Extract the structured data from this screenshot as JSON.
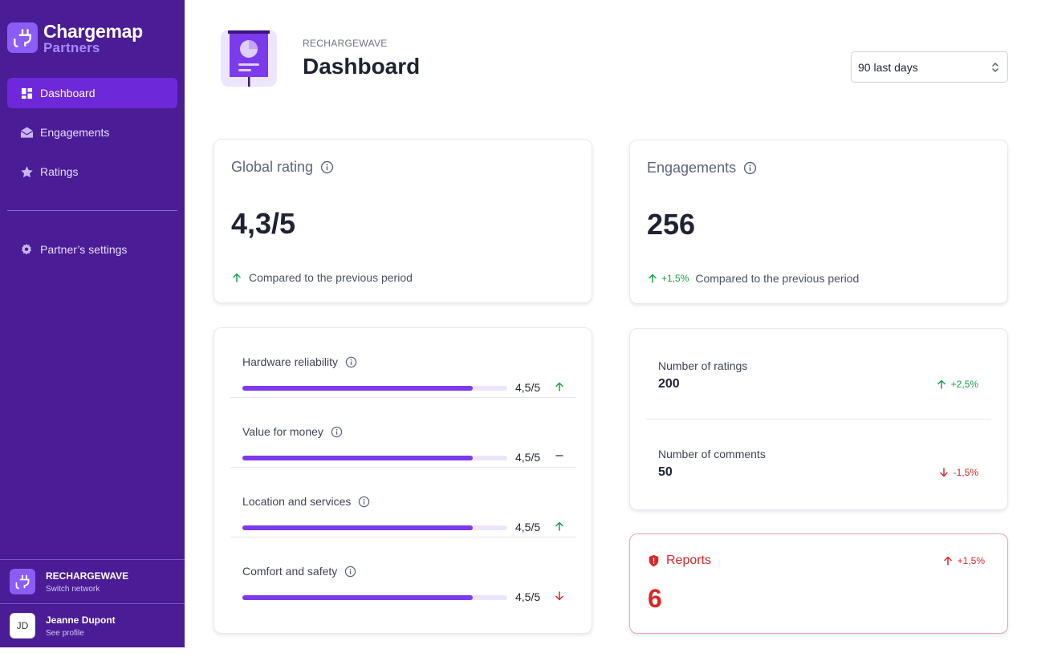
{
  "brand": {
    "name": "Chargemap",
    "sub": "Partners"
  },
  "nav": {
    "items": [
      {
        "label": "Dashboard",
        "active": true
      },
      {
        "label": "Engagements",
        "active": false
      },
      {
        "label": "Ratings",
        "active": false
      }
    ],
    "settings": "Partner’s settings"
  },
  "sidebar_footer": {
    "network": {
      "name": "RECHARGEWAVE",
      "action": "Switch network"
    },
    "user": {
      "initials": "JD",
      "name": "Jeanne Dupont",
      "action": "See profile"
    }
  },
  "header": {
    "breadcrumb": "RECHARGEWAVE",
    "title": "Dashboard",
    "period": "90 last days"
  },
  "global_rating": {
    "title": "Global rating",
    "value": "4,3/5",
    "compare": "Compared to the previous period"
  },
  "engagements": {
    "title": "Engagements",
    "value": "256",
    "delta": "+1,5%",
    "compare": "Compared to the previous period"
  },
  "criteria": [
    {
      "label": "Hardware reliability",
      "score": "4,5/5",
      "fraction": 0.87,
      "trend": "up"
    },
    {
      "label": "Value for money",
      "score": "4,5/5",
      "fraction": 0.87,
      "trend": "flat"
    },
    {
      "label": "Location and services",
      "score": "4,5/5",
      "fraction": 0.87,
      "trend": "up"
    },
    {
      "label": "Comfort and safety",
      "score": "4,5/5",
      "fraction": 0.87,
      "trend": "down"
    }
  ],
  "stats": {
    "ratings": {
      "label": "Number of ratings",
      "value": "200",
      "delta": "+2,5%",
      "trend": "up"
    },
    "comments": {
      "label": "Number of comments",
      "value": "50",
      "delta": "-1,5%",
      "trend": "down"
    }
  },
  "reports": {
    "title": "Reports",
    "value": "6",
    "delta": "+1,5%"
  },
  "colors": {
    "sidebar": "#4a1c96",
    "accent": "#7c3aed",
    "up": "#16a34a",
    "down": "#dc2626"
  }
}
